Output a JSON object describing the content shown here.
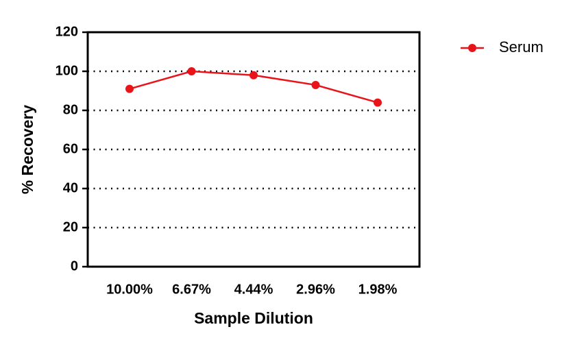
{
  "chart_data": {
    "type": "line",
    "xlabel": "Sample Dilution",
    "ylabel": "% Recovery",
    "categories": [
      "10.00%",
      "6.67%",
      "4.44%",
      "2.96%",
      "1.98%"
    ],
    "series": [
      {
        "name": "Serum",
        "color": "#e8141a",
        "values": [
          91,
          100,
          98,
          93,
          84
        ]
      }
    ],
    "ylim": [
      0,
      120
    ],
    "yticks": [
      0,
      20,
      40,
      60,
      80,
      100,
      120
    ],
    "grid": true,
    "legend": "right"
  }
}
